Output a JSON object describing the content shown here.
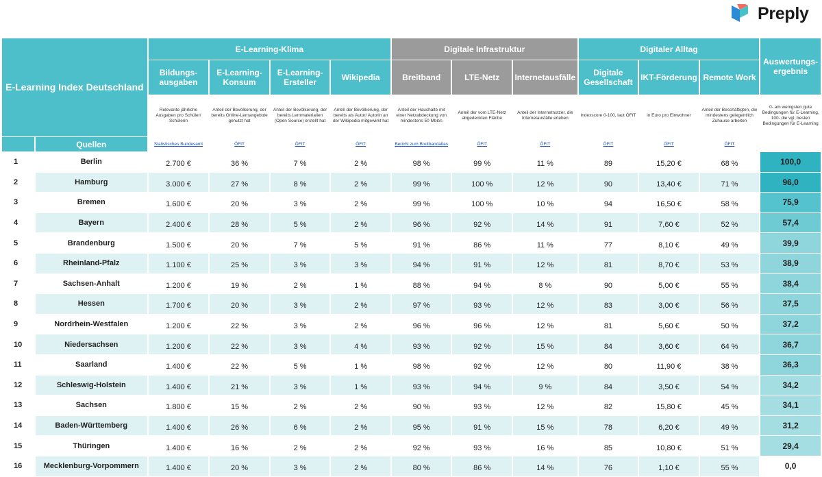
{
  "brand": {
    "name": "Preply",
    "logo_colors": [
      "#2d8bd6",
      "#46c1c9",
      "#f36b5f"
    ]
  },
  "table": {
    "index_title": "E-Learning Index Deutschland",
    "groups": {
      "klima": "E-Learning-Klima",
      "infra": "Digitale Infrastruktur",
      "alltag": "Digitaler Alltag"
    },
    "result_title": "Auswertungs-ergebnis",
    "result_desc": "0- am wenigsten gute Bedingungen für E-Learning, 100- die vgl. besten Bedingungen für E-Learning",
    "quellen_label": "Quellen",
    "columns": [
      {
        "label": "Bildungs-ausgaben",
        "desc": "Relevante jährliche Ausgaben pro Schüler/ Schülerin",
        "source": "Statistisches Bundesamt"
      },
      {
        "label": "E-Learning-Konsum",
        "desc": "Anteil der Bevölkerung, der bereits Online-Lernangebote genutzt hat",
        "source": "ÖFIT"
      },
      {
        "label": "E-Learning-Ersteller",
        "desc": "Anteil der Bevölkerung, der bereits Lernmaterialien (Open Source) erstellt hat",
        "source": "ÖFIT"
      },
      {
        "label": "Wikipedia",
        "desc": "Anteil der Bevölkerung, der bereits als Autor/ Autorin an der Wikipedia mitgewirkt hat",
        "source": "ÖFIT"
      },
      {
        "label": "Breitband",
        "desc": "Anteil der Haushalte mit einer Netzabdeckung von mindestens 50 Mbit/s",
        "source": "Bericht zum Breitbandatlas"
      },
      {
        "label": "LTE-Netz",
        "desc": "Anteil der vom LTE-Netz abgedeckten Fläche",
        "source": "ÖFIT"
      },
      {
        "label": "Internetausfälle",
        "desc": "Anteil der Internetnutzer, die Internetausfälle erleben",
        "source": "ÖFIT"
      },
      {
        "label": "Digitale Gesellschaft",
        "desc": "Indexscore 0-100, laut ÖFIT",
        "source": "ÖFIT"
      },
      {
        "label": "IKT-Förderung",
        "desc": "in Euro pro Einwohner",
        "source": "ÖFIT"
      },
      {
        "label": "Remote Work",
        "desc": "Anteil der Beschäftigten, die mindestens gelegentlich Zuhause arbeiten",
        "source": "ÖFIT"
      }
    ],
    "rows": [
      {
        "rank": "1",
        "state": "Berlin",
        "vals": [
          "2.700 €",
          "36 %",
          "7 %",
          "2 %",
          "98 %",
          "99 %",
          "11 %",
          "89",
          "15,20 €",
          "68 %"
        ],
        "score": "100,0",
        "score_level": 1
      },
      {
        "rank": "2",
        "state": "Hamburg",
        "vals": [
          "3.000 €",
          "27 %",
          "8 %",
          "2 %",
          "99 %",
          "100 %",
          "12 %",
          "90",
          "13,40 €",
          "71 %"
        ],
        "score": "96,0",
        "score_level": 1
      },
      {
        "rank": "3",
        "state": "Bremen",
        "vals": [
          "1.600 €",
          "20 %",
          "3 %",
          "2 %",
          "99 %",
          "100 %",
          "10 %",
          "94",
          "16,50 €",
          "58 %"
        ],
        "score": "75,9",
        "score_level": 2
      },
      {
        "rank": "4",
        "state": "Bayern",
        "vals": [
          "2.400 €",
          "28 %",
          "5 %",
          "2 %",
          "96 %",
          "92 %",
          "14 %",
          "91",
          "7,60 €",
          "52 %"
        ],
        "score": "57,4",
        "score_level": 3
      },
      {
        "rank": "5",
        "state": "Brandenburg",
        "vals": [
          "1.500 €",
          "20 %",
          "7 %",
          "5 %",
          "91 %",
          "86 %",
          "11 %",
          "77",
          "8,10 €",
          "49 %"
        ],
        "score": "39,9",
        "score_level": 4
      },
      {
        "rank": "6",
        "state": "Rheinland-Pfalz",
        "vals": [
          "1.100 €",
          "25 %",
          "3 %",
          "3 %",
          "94 %",
          "91 %",
          "12 %",
          "81",
          "8,70 €",
          "53 %"
        ],
        "score": "38,9",
        "score_level": 4
      },
      {
        "rank": "7",
        "state": "Sachsen-Anhalt",
        "vals": [
          "1.200 €",
          "19 %",
          "2 %",
          "1 %",
          "88 %",
          "94 %",
          "8 %",
          "90",
          "5,00 €",
          "55 %"
        ],
        "score": "38,4",
        "score_level": 4
      },
      {
        "rank": "8",
        "state": "Hessen",
        "vals": [
          "1.700 €",
          "20 %",
          "3 %",
          "2 %",
          "97 %",
          "93 %",
          "12 %",
          "83",
          "3,00 €",
          "56 %"
        ],
        "score": "37,5",
        "score_level": 4
      },
      {
        "rank": "9",
        "state": "Nordrhein-Westfalen",
        "vals": [
          "1.200 €",
          "22 %",
          "3 %",
          "2 %",
          "96 %",
          "96 %",
          "12 %",
          "81",
          "5,60 €",
          "50 %"
        ],
        "score": "37,2",
        "score_level": 4
      },
      {
        "rank": "10",
        "state": "Niedersachsen",
        "vals": [
          "1.200 €",
          "22 %",
          "3 %",
          "4 %",
          "93 %",
          "92 %",
          "15 %",
          "84",
          "3,60 €",
          "64 %"
        ],
        "score": "36,7",
        "score_level": 4
      },
      {
        "rank": "11",
        "state": "Saarland",
        "vals": [
          "1.400 €",
          "22 %",
          "5 %",
          "1 %",
          "98 %",
          "92 %",
          "12 %",
          "80",
          "11,90 €",
          "38 %"
        ],
        "score": "36,3",
        "score_level": 4
      },
      {
        "rank": "12",
        "state": "Schleswig-Holstein",
        "vals": [
          "1.400 €",
          "21 %",
          "3 %",
          "1 %",
          "93 %",
          "94 %",
          "9 %",
          "84",
          "3,50 €",
          "54 %"
        ],
        "score": "34,2",
        "score_level": 5
      },
      {
        "rank": "13",
        "state": "Sachsen",
        "vals": [
          "1.800 €",
          "15 %",
          "2 %",
          "2 %",
          "90 %",
          "93 %",
          "12 %",
          "82",
          "15,80 €",
          "45 %"
        ],
        "score": "34,1",
        "score_level": 5
      },
      {
        "rank": "14",
        "state": "Baden-Württemberg",
        "vals": [
          "1.400 €",
          "26 %",
          "6 %",
          "2 %",
          "95 %",
          "91 %",
          "15 %",
          "78",
          "6,20 €",
          "49 %"
        ],
        "score": "31,2",
        "score_level": 5
      },
      {
        "rank": "15",
        "state": "Thüringen",
        "vals": [
          "1.400 €",
          "16 %",
          "2 %",
          "2 %",
          "92 %",
          "93 %",
          "16 %",
          "85",
          "10,80 €",
          "51 %"
        ],
        "score": "29,4",
        "score_level": 5
      },
      {
        "rank": "16",
        "state": "Mecklenburg-Vorpommern",
        "vals": [
          "1.400 €",
          "20 %",
          "3 %",
          "2 %",
          "80 %",
          "86 %",
          "14 %",
          "76",
          "1,10 €",
          "55 %"
        ],
        "score": "0,0",
        "score_level": 0
      }
    ]
  }
}
